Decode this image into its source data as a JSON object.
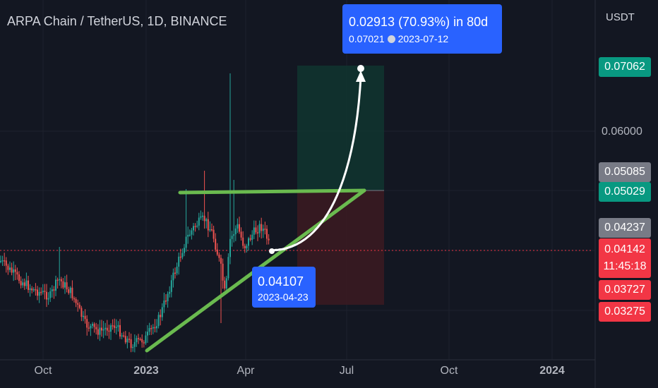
{
  "header": {
    "title": "ARPA Chain / TetherUS, 1D, BINANCE",
    "unit": "USDT"
  },
  "chart_data": {
    "type": "candlestick",
    "y_ticks": [
      "0.06000"
    ],
    "x_ticks": [
      "Oct",
      "2023",
      "Apr",
      "Jul",
      "Oct",
      "2024"
    ],
    "price_badges": [
      {
        "label": "0.07062",
        "color": "#089981"
      },
      {
        "label": "0.05085",
        "color": "#787b86"
      },
      {
        "label": "0.05029",
        "color": "#089981"
      },
      {
        "label": "0.04237",
        "color": "#787b86"
      },
      {
        "label": "0.04142",
        "color": "#f23645"
      },
      {
        "label": "11:45:18",
        "color": "#f23645"
      },
      {
        "label": "0.03727",
        "color": "#f23645"
      },
      {
        "label": "0.03275",
        "color": "#f23645"
      }
    ],
    "current_price": 0.04142,
    "callouts": {
      "target": {
        "main": "0.02913 (70.93%) in 80d",
        "price": "0.07021",
        "date": "2023-07-12"
      },
      "entry": {
        "price": "0.04107",
        "date": "2023-04-23"
      }
    },
    "position": {
      "entry": 0.05029,
      "target": 0.07062,
      "stop": 0.03275
    },
    "trendlines": [
      {
        "name": "resistance",
        "from": [
          "2023-02-15",
          0.0505
        ],
        "to": [
          "2023-07-12",
          0.0504
        ]
      },
      {
        "name": "support",
        "from": [
          "2023-01-01",
          0.0318
        ],
        "to": [
          "2023-07-12",
          0.0504
        ]
      }
    ],
    "colors": {
      "up": "#26a69a",
      "down": "#ef5350",
      "trendline": "#6aba4f",
      "profit_zone": "#10352f",
      "loss_zone": "#3a1a21",
      "callout": "#2962ff"
    }
  }
}
